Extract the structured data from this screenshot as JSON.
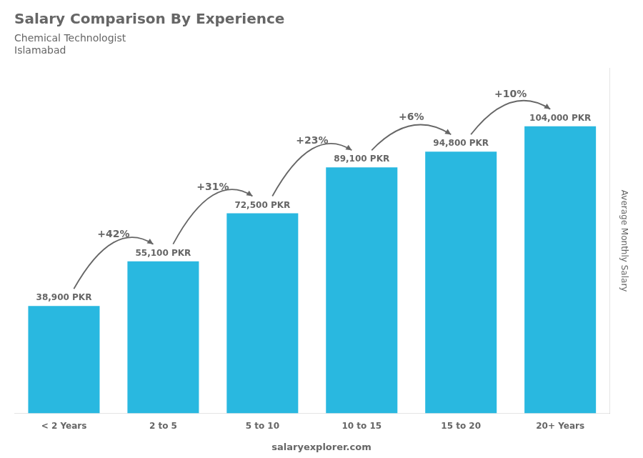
{
  "chart_data": {
    "type": "bar",
    "title": "Salary Comparison By Experience",
    "subtitle": "Chemical Technologist",
    "annotations": [
      "Islamabad",
      "salaryexplorer.com"
    ],
    "ylabel": "Average Monthly Salary",
    "categories": [
      "< 2 Years",
      "2 to 5",
      "5 to 10",
      "10 to 15",
      "15 to 20",
      "20+ Years"
    ],
    "values": [
      38900,
      55100,
      72500,
      89100,
      94800,
      104000
    ],
    "value_labels": [
      "38,900 PKR",
      "55,100 PKR",
      "72,500 PKR",
      "89,100 PKR",
      "94,800 PKR",
      "104,000 PKR"
    ],
    "change_labels": [
      "+42%",
      "+31%",
      "+23%",
      "+6%",
      "+10%"
    ],
    "color": "#29b8e0",
    "data_labels": true,
    "ylim": [
      0,
      125000
    ],
    "tick_labels": "x",
    "grid": false
  }
}
